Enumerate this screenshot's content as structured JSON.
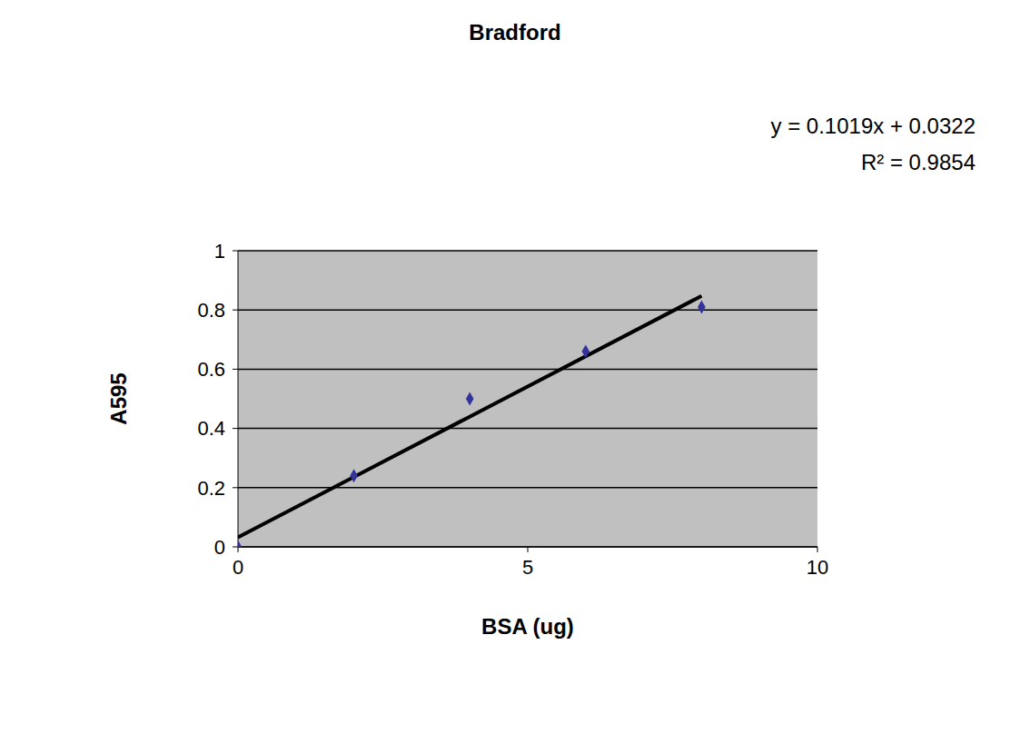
{
  "chart_data": {
    "type": "scatter",
    "title": "Bradford",
    "annotations": [
      "y = 0.1019x + 0.0322",
      "R² = 0.9854"
    ],
    "x_label": "BSA (ug)",
    "y_label": "A595",
    "xlim": [
      0,
      10
    ],
    "xticks": [
      0,
      5,
      10
    ],
    "ylim": [
      0,
      1
    ],
    "yticks": [
      0,
      0.2,
      0.4,
      0.6,
      0.8,
      1
    ],
    "grid": "y",
    "series": [
      {
        "type": "scatter",
        "color": "#333399",
        "marker": "diamond",
        "x": [
          0,
          2,
          4,
          6,
          8
        ],
        "values": [
          0,
          0.24,
          0.5,
          0.66,
          0.81
        ]
      },
      {
        "type": "line",
        "color": "#000000",
        "x": [
          0,
          8
        ],
        "values": [
          0.0322,
          0.8474
        ]
      }
    ]
  }
}
